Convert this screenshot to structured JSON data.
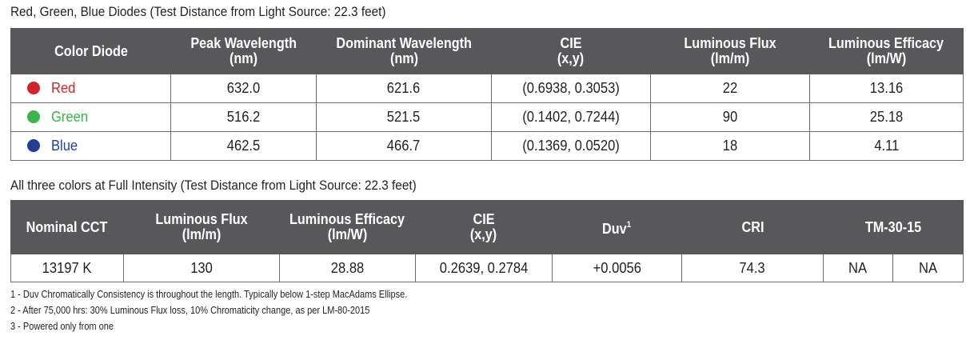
{
  "table1": {
    "caption": "Red, Green, Blue Diodes (Test Distance from Light Source: 22.3 feet)",
    "headers": [
      {
        "line1": "Color Diode",
        "line2": ""
      },
      {
        "line1": "Peak Wavelength",
        "line2": "(nm)"
      },
      {
        "line1": "Dominant Wavelength",
        "line2": "(nm)"
      },
      {
        "line1": "CIE",
        "line2": "(x,y)"
      },
      {
        "line1": "Luminous Flux",
        "line2": "(lm/m)"
      },
      {
        "line1": "Luminous Efficacy",
        "line2": "(lm/W)"
      }
    ],
    "rows": [
      {
        "color_name": "Red",
        "dot_color": "#d2232a",
        "peak": "632.0",
        "dominant": "621.6",
        "cie": "(0.6938, 0.3053)",
        "flux": "22",
        "efficacy": "13.16"
      },
      {
        "color_name": "Green",
        "dot_color": "#39b54a",
        "peak": "516.2",
        "dominant": "521.5",
        "cie": "(0.1402, 0.7244)",
        "flux": "90",
        "efficacy": "25.18"
      },
      {
        "color_name": "Blue",
        "dot_color": "#233e99",
        "peak": "462.5",
        "dominant": "466.7",
        "cie": "(0.1369, 0.0520)",
        "flux": "18",
        "efficacy": "4.11"
      }
    ]
  },
  "table2": {
    "caption": "All three colors at Full Intensity (Test Distance from Light Source: 22.3 feet)",
    "headers": [
      {
        "line1": "Nominal CCT",
        "line2": ""
      },
      {
        "line1": "Luminous Flux",
        "line2": "(lm/m)"
      },
      {
        "line1": "Luminous Efficacy",
        "line2": "(lm/W)"
      },
      {
        "line1": "CIE",
        "line2": "(x,y)"
      },
      {
        "line1": "Duv",
        "line2": "",
        "sup": "1"
      },
      {
        "line1": "CRI",
        "line2": ""
      },
      {
        "line1": "TM-30-15",
        "line2": ""
      }
    ],
    "row": {
      "cct": "13197 K",
      "flux": "130",
      "efficacy": "28.88",
      "cie": "0.2639, 0.2784",
      "duv": "+0.0056",
      "cri": "74.3",
      "tm30_a": "NA",
      "tm30_b": "NA"
    }
  },
  "footnotes": [
    "1 - Duv Chromatically Consistency is throughout the length. Typically below 1-step MacAdams Ellipse.",
    "2 - After 75,000 hrs: 30% Luminous Flux loss, 10% Chromaticity change, as per LM-80-2015",
    "3 - Powered only from one"
  ],
  "colors": {
    "header_bg": "#58585a",
    "border": "#6d6e71",
    "red": "#d2232a",
    "green": "#39b54a",
    "blue": "#233e99"
  }
}
